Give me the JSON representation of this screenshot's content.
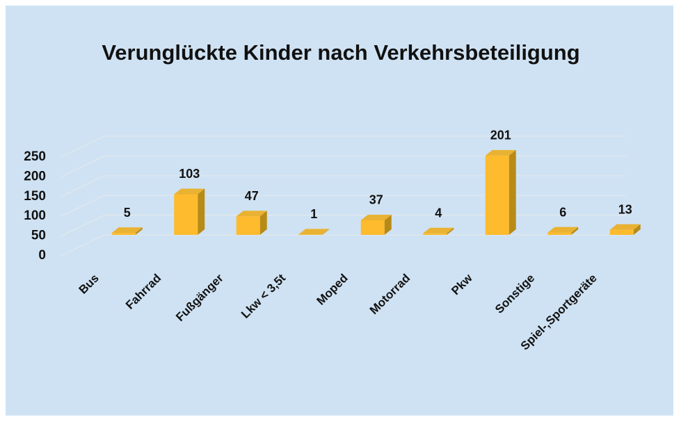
{
  "chart_data": {
    "type": "bar3d",
    "title": "Verunglückte Kinder nach Verkehrsbeteiligung",
    "categories": [
      "Bus",
      "Fahrrad",
      "Fußgänger",
      "Lkw < 3,5t",
      "Moped",
      "Motorrad",
      "Pkw",
      "Sonstige",
      "Spiel-,Sportgeräte"
    ],
    "values": [
      5,
      103,
      47,
      1,
      37,
      4,
      201,
      6,
      13
    ],
    "color": "#fdbb2d",
    "ylim": [
      0,
      250
    ],
    "yticks": [
      0,
      50,
      100,
      150,
      200,
      250
    ],
    "grid": true
  }
}
